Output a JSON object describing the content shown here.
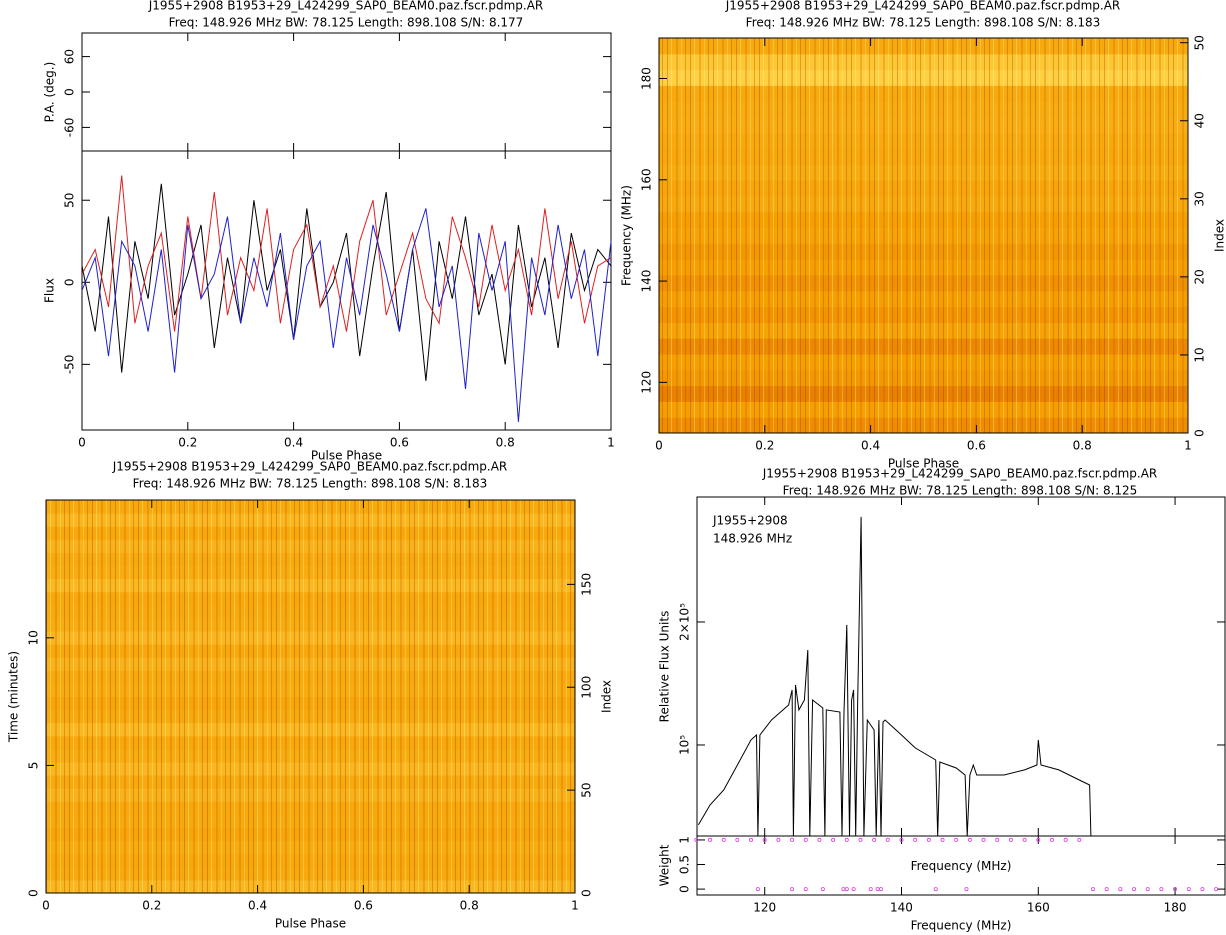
{
  "chart_data": [
    {
      "type": "line",
      "title": "J1955+2908  B1953+29_L424299_SAP0_BEAM0.paz.fscr.pdmp.AR",
      "subtitle": "Freq: 148.926 MHz BW: 78.125 Length: 898.108 S/N: 8.177",
      "xlabel": "Pulse Phase",
      "ylabel": "Flux",
      "xlim": [
        0,
        1
      ],
      "xticks": [
        0,
        0.2,
        0.4,
        0.6,
        0.8,
        1
      ],
      "ylim": [
        -90,
        80
      ],
      "yticks": [
        -50,
        0,
        50
      ],
      "pa_panel": {
        "ylabel": "P.A. (deg.)",
        "ylim": [
          -100,
          100
        ],
        "yticks": [
          -60,
          0,
          60
        ]
      },
      "x": [
        0,
        0.025,
        0.05,
        0.075,
        0.1,
        0.125,
        0.15,
        0.175,
        0.2,
        0.225,
        0.25,
        0.275,
        0.3,
        0.325,
        0.35,
        0.375,
        0.4,
        0.425,
        0.45,
        0.475,
        0.5,
        0.525,
        0.55,
        0.575,
        0.6,
        0.625,
        0.65,
        0.675,
        0.7,
        0.725,
        0.75,
        0.775,
        0.8,
        0.825,
        0.85,
        0.875,
        0.9,
        0.925,
        0.95,
        0.975,
        1
      ],
      "series": [
        {
          "color": "#000000",
          "values": [
            10,
            -30,
            40,
            -55,
            25,
            -10,
            60,
            -20,
            5,
            35,
            -40,
            15,
            -25,
            50,
            -5,
            20,
            -35,
            45,
            -15,
            0,
            30,
            -45,
            10,
            55,
            -30,
            20,
            -60,
            25,
            -10,
            40,
            -20,
            5,
            -50,
            35,
            -15,
            15,
            -40,
            30,
            -5,
            20,
            10
          ]
        },
        {
          "color": "#e02020",
          "values": [
            5,
            20,
            -15,
            65,
            -25,
            10,
            30,
            -30,
            40,
            -10,
            55,
            -20,
            15,
            -5,
            45,
            -25,
            20,
            35,
            -15,
            10,
            -30,
            25,
            50,
            -20,
            5,
            30,
            -10,
            -25,
            40,
            15,
            -15,
            35,
            -5,
            20,
            -20,
            45,
            -10,
            25,
            -25,
            10,
            15
          ]
        },
        {
          "color": "#2020d0",
          "values": [
            -5,
            15,
            -45,
            25,
            10,
            -30,
            20,
            -55,
            35,
            -10,
            5,
            40,
            -25,
            15,
            -15,
            30,
            -35,
            10,
            25,
            -40,
            15,
            -20,
            35,
            5,
            -30,
            20,
            45,
            -15,
            10,
            -65,
            30,
            -5,
            25,
            -85,
            15,
            -20,
            35,
            -10,
            20,
            -45,
            25
          ]
        }
      ]
    },
    {
      "type": "heatmap",
      "title": "J1955+2908  B1953+29_L424299_SAP0_BEAM0.paz.fscr.pdmp.AR",
      "subtitle": "Freq: 148.926 MHz BW: 78.125 Length: 898.108 S/N: 8.183",
      "xlabel": "Pulse Phase",
      "ylabel": "Frequency (MHz)",
      "y2label": "Index",
      "xlim": [
        0,
        1
      ],
      "xticks": [
        0,
        0.2,
        0.4,
        0.6,
        0.8,
        1
      ],
      "ylim": [
        110,
        188
      ],
      "yticks": [
        120,
        140,
        160,
        180
      ],
      "y2lim": [
        0,
        50.6
      ],
      "y2ticks": [
        0,
        10,
        20,
        30,
        40,
        50
      ],
      "colormap": [
        "#6a0000",
        "#d04000",
        "#f5a000",
        "#ffd040",
        "#fff8c0"
      ],
      "values": [
        0.45,
        0.5,
        0.42,
        0.48,
        0.5,
        0.44,
        0.52,
        0.47,
        0.5,
        0.46,
        0.5,
        0.48,
        0.52,
        0.5,
        0.55,
        0.53,
        0.56,
        0.54,
        0.55,
        0.57,
        0.56,
        0.55,
        0.75,
        0.7,
        0.55
      ]
    },
    {
      "type": "heatmap",
      "title": "J1955+2908  B1953+29_L424299_SAP0_BEAM0.paz.fscr.pdmp.AR",
      "subtitle": "Freq: 148.926 MHz BW: 78.125 Length: 898.108 S/N: 8.183",
      "xlabel": "Pulse Phase",
      "ylabel": "Time (minutes)",
      "y2label": "Index",
      "xlim": [
        0,
        1
      ],
      "xticks": [
        0,
        0.2,
        0.4,
        0.6,
        0.8,
        1
      ],
      "ylim": [
        0,
        15.4
      ],
      "yticks": [
        0,
        5,
        10
      ],
      "y2lim": [
        0,
        191
      ],
      "y2ticks": [
        0,
        50,
        100,
        150
      ],
      "colormap": [
        "#6a0000",
        "#d04000",
        "#f5a000",
        "#ffd040",
        "#fff8c0"
      ],
      "values": [
        0.62,
        0.55,
        0.54,
        0.56,
        0.53,
        0.55,
        0.54,
        0.6,
        0.55,
        0.62,
        0.56,
        0.54,
        0.63,
        0.55,
        0.53,
        0.56,
        0.55,
        0.6,
        0.54,
        0.62,
        0.56,
        0.55,
        0.54,
        0.63,
        0.56,
        0.55,
        0.6,
        0.54,
        0.62,
        0.55
      ]
    },
    {
      "type": "line",
      "title": "J1955+2908  B1953+29_L424299_SAP0_BEAM0.paz.fscr.pdmp.AR",
      "subtitle": "Freq: 148.926 MHz BW: 78.125 Length: 898.108 S/N: 8.125",
      "annotations": [
        "J1955+2908",
        "148.926 MHz"
      ],
      "xlabel": "Frequency (MHz)",
      "ylabel": "Relative Flux Units",
      "xlim": [
        110.1,
        187.3
      ],
      "xticks": [
        120,
        140,
        160,
        180
      ],
      "ylim": [
        26000,
        301600
      ],
      "yticks": [
        {
          "value": 100000,
          "label": "10⁵"
        },
        {
          "value": 200000,
          "label": "2×10⁵"
        }
      ],
      "x": [
        110.3,
        112,
        114,
        116,
        118,
        118.8,
        119,
        119.3,
        121,
        123.5,
        124,
        124.2,
        124.5,
        125,
        125.8,
        126.3,
        126.6,
        127,
        128.5,
        128.8,
        129,
        131,
        131.3,
        131.6,
        132,
        132.4,
        132.7,
        133,
        133.3,
        133.6,
        134.1,
        134.5,
        135,
        136,
        136.3,
        136.7,
        137,
        137.3,
        137.6,
        140,
        142,
        145,
        145.3,
        145.6,
        148,
        149.3,
        149.6,
        150,
        150.5,
        151,
        155,
        158,
        159.8,
        160,
        160.4,
        163,
        166,
        167.5,
        167.7
      ],
      "series": [
        {
          "color": "#000000",
          "values": [
            35000,
            51200,
            63400,
            83700,
            104100,
            108100,
            26000,
            108100,
            120300,
            132500,
            144700,
            26000,
            148800,
            128500,
            136600,
            177200,
            26000,
            136600,
            130100,
            26000,
            128500,
            126800,
            26000,
            126800,
            197600,
            26000,
            136600,
            144700,
            26000,
            136600,
            285400,
            26000,
            120300,
            112200,
            26000,
            120300,
            26000,
            118700,
            120300,
            108100,
            97600,
            87800,
            26000,
            86200,
            81300,
            75600,
            26000,
            75600,
            83700,
            75600,
            75600,
            79700,
            83700,
            104100,
            83700,
            79700,
            71500,
            67500,
            26000
          ]
        }
      ],
      "weight_panel": {
        "ylabel": "Weight",
        "xlabel": "Frequency (MHz)",
        "ylim": [
          -0.12,
          1.08
        ],
        "yticks": [
          0,
          0.5,
          1
        ],
        "color": "#e040e0",
        "x": [
          110,
          112,
          114,
          116,
          118,
          120,
          122,
          124,
          126,
          128,
          130,
          132,
          134,
          136,
          138,
          140,
          142,
          144,
          146,
          148,
          150,
          152,
          154,
          156,
          158,
          160,
          162,
          164,
          166,
          119,
          124,
          126,
          128.5,
          131.5,
          132,
          133,
          135.5,
          136.5,
          137,
          145,
          149.5,
          168,
          170,
          172,
          174,
          176,
          178,
          180,
          182,
          184,
          186
        ],
        "values": [
          1,
          1,
          1,
          1,
          1,
          1,
          1,
          1,
          1,
          1,
          1,
          1,
          1,
          1,
          1,
          1,
          1,
          1,
          1,
          1,
          1,
          1,
          1,
          1,
          1,
          1,
          1,
          1,
          1,
          0,
          0,
          0,
          0,
          0,
          0,
          0,
          0,
          0,
          0,
          0,
          0,
          0,
          0,
          0,
          0,
          0,
          0,
          0,
          0,
          0,
          0
        ]
      }
    }
  ]
}
